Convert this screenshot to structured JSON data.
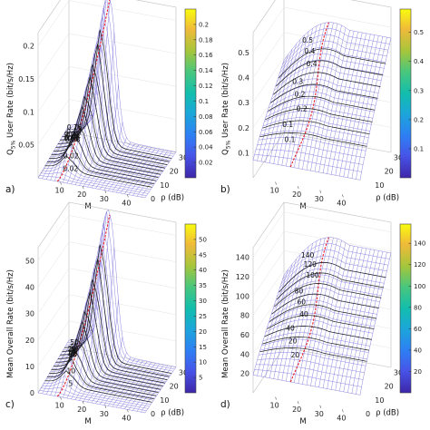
{
  "colors": {
    "mesh": "#6a5fd6",
    "contour": "#1c1c1c",
    "ridge": "#e8202a",
    "box": "#bdbdbd"
  },
  "chart_data": [
    {
      "type": "surface",
      "panel": "a)",
      "zlabel": "Q",
      "zlabel_sub": "5%",
      "zlabel_rest": " User Rate (bit/s/Hz)",
      "xlabel": "M",
      "ylabel": "ρ (dB)",
      "x_ticks": [
        10,
        20,
        30,
        40
      ],
      "y_ticks": [
        0,
        10,
        20,
        30
      ],
      "z_ticks": [
        0.05,
        0.1,
        0.15,
        0.2
      ],
      "zlim": [
        0,
        0.22
      ],
      "colorbar_ticks": [
        0.02,
        0.04,
        0.06,
        0.08,
        0.1,
        0.12,
        0.14,
        0.16,
        0.18,
        0.2
      ],
      "colorbar_range": [
        0,
        0.22
      ],
      "contour_labels": [
        "0.16",
        "0.14",
        "0.12",
        "0.1",
        "0.08",
        "0.06",
        "0.04",
        "0.04",
        "0.02",
        "0.02"
      ]
    },
    {
      "type": "surface",
      "panel": "b)",
      "zlabel": "Q",
      "zlabel_sub": "5%",
      "zlabel_rest": " User Rate (bit/s/Hz)",
      "xlabel": "M",
      "ylabel": "ρ (dB)",
      "x_ticks": [
        10,
        20,
        30,
        40
      ],
      "y_ticks": [
        10,
        20,
        30
      ],
      "z_ticks": [
        0.1,
        0.2,
        0.3,
        0.4,
        0.5
      ],
      "zlim": [
        0,
        0.58
      ],
      "colorbar_ticks": [
        0.1,
        0.2,
        0.3,
        0.4,
        0.5
      ],
      "colorbar_range": [
        0,
        0.58
      ],
      "contour_labels": [
        "0.5",
        "0.4",
        "0.4",
        "0.3",
        "0.2",
        "0.2",
        "0.1",
        "0.1"
      ]
    },
    {
      "type": "surface",
      "panel": "c)",
      "zlabel": "Mean Overall Rate (bit/s/Hz)",
      "xlabel": "M",
      "ylabel": "ρ (dB)",
      "x_ticks": [
        10,
        20,
        30,
        40
      ],
      "y_ticks": [
        0,
        10,
        20,
        30
      ],
      "z_ticks": [
        0,
        10,
        20,
        30,
        40,
        50
      ],
      "zlim": [
        0,
        55
      ],
      "colorbar_ticks": [
        5,
        10,
        15,
        20,
        25,
        30,
        35,
        40,
        45,
        50
      ],
      "colorbar_range": [
        0,
        55
      ],
      "contour_labels": [
        "50",
        "45",
        "40",
        "35",
        "30",
        "25",
        "20",
        "15",
        "10",
        "5"
      ]
    },
    {
      "type": "surface",
      "panel": "d)",
      "zlabel": "Mean Overall Rate (bit/s/Hz)",
      "xlabel": "M",
      "ylabel": "ρ (dB)",
      "x_ticks": [
        10,
        20,
        30,
        40
      ],
      "y_ticks": [
        0,
        10,
        20,
        30
      ],
      "z_ticks": [
        20,
        40,
        60,
        80,
        100,
        120,
        140
      ],
      "zlim": [
        0,
        150
      ],
      "colorbar_ticks": [
        20,
        40,
        60,
        80,
        100,
        120,
        140
      ],
      "colorbar_range": [
        0,
        158
      ],
      "contour_labels": [
        "140",
        "120",
        "100",
        "80",
        "60",
        "40",
        "40",
        "20",
        "20"
      ]
    }
  ]
}
